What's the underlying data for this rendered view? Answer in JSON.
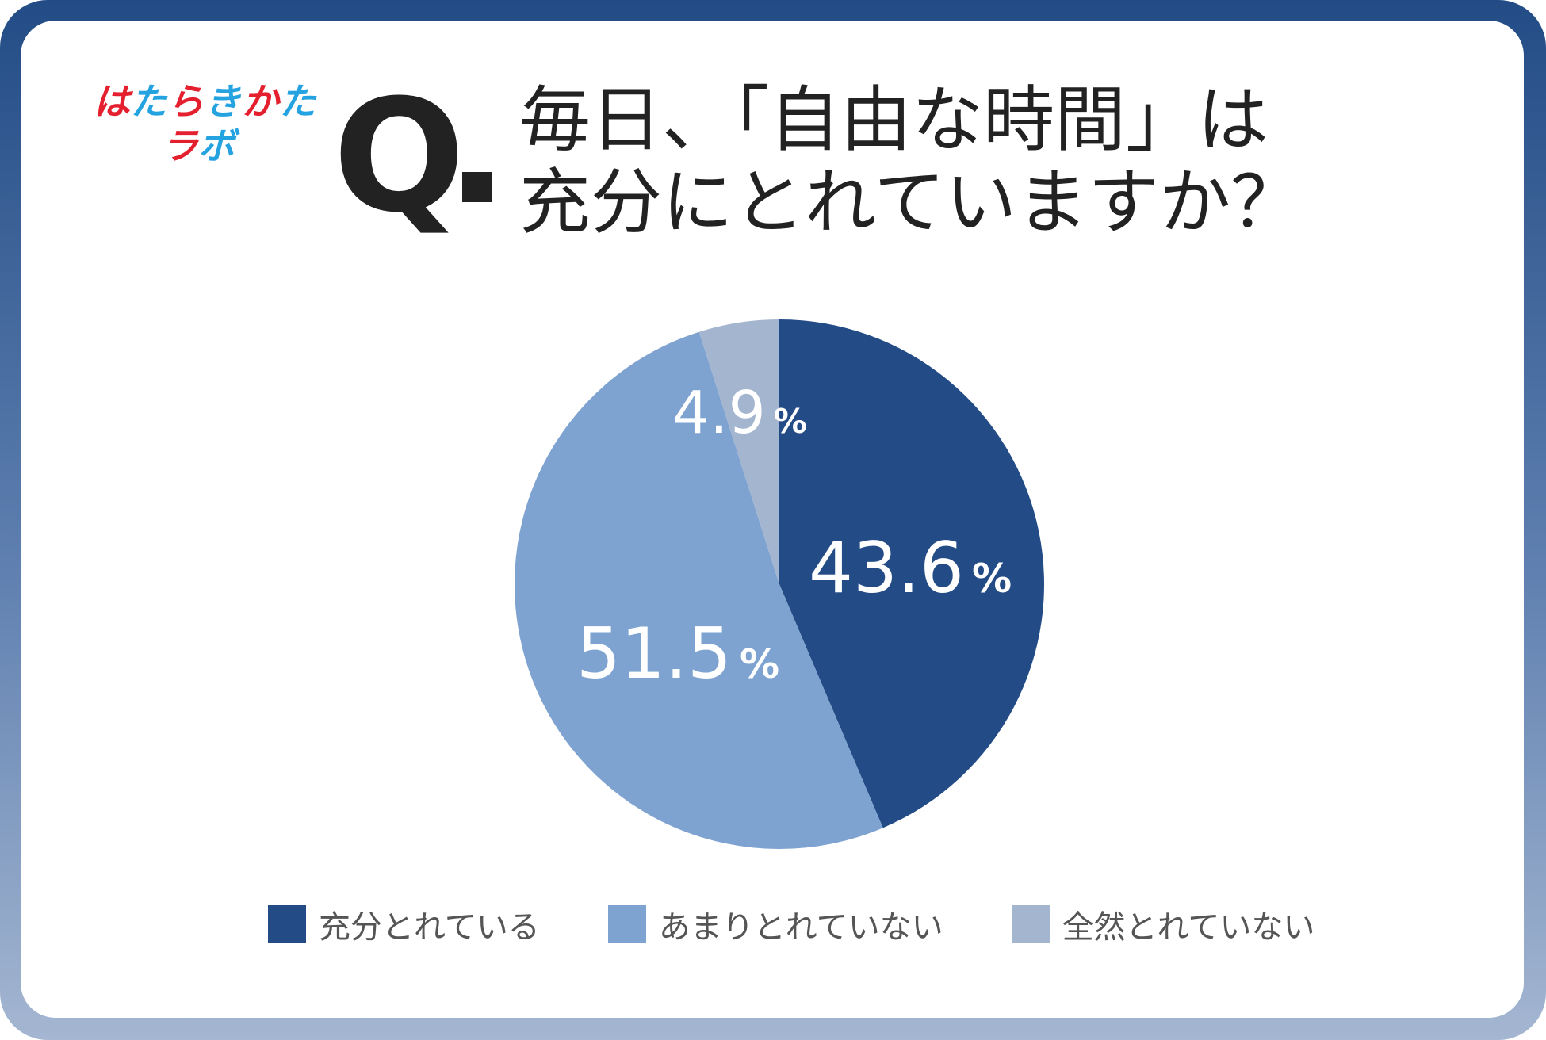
{
  "logo": {
    "text_line1": "はたらきかた",
    "text_line2": "ラボ"
  },
  "question": {
    "prefix": "Q",
    "title_line1": "毎日、「自由な時間」は",
    "title_line2": "充分にとれていますか？"
  },
  "colors": {
    "frame": "#234c86",
    "slice_1": "#234c86",
    "slice_2": "#7ea3d1",
    "slice_3": "#a4b5cf",
    "logo_red": "#e4202f",
    "logo_blue": "#25a3e0"
  },
  "chart_data": {
    "type": "pie",
    "slices": [
      {
        "name": "充分とれている",
        "value": 43.6,
        "value_label": "43.6",
        "unit": "%",
        "color": "#234c86"
      },
      {
        "name": "あまりとれていない",
        "value": 51.5,
        "value_label": "51.5",
        "unit": "%",
        "color": "#7ea3d1"
      },
      {
        "name": "全然とれていない",
        "value": 4.9,
        "value_label": "4.9",
        "unit": "%",
        "color": "#a4b5cf"
      }
    ],
    "start": "12 o'clock",
    "direction": "clockwise",
    "legend_position": "bottom"
  }
}
